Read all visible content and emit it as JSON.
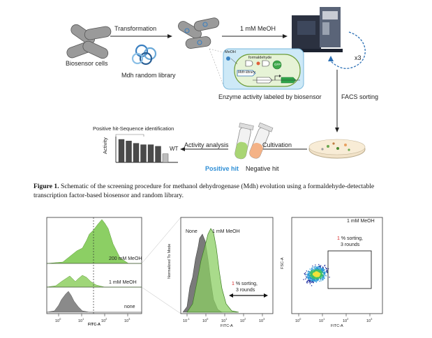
{
  "schematic": {
    "biosensor_cells": "Biosensor cells",
    "transformation": "Transformation",
    "mdh_library": "Mdh random library",
    "meoh_condition": "1 mM MeOH",
    "inset_meoh": "MeOH",
    "inset_formaldehyde": "formaldehyde",
    "inset_mdh": "Mdh library",
    "inset_gfp": "GFP",
    "enzyme_label": "Enzyme activity labeled by biosensor",
    "repeat": "x3",
    "facs": "FACS sorting",
    "cultivation": "Cultivation",
    "activity_analysis": "Activity analysis",
    "positive_hit_seq": "Positive hit-Sequence identification",
    "activity_axis": "Activity",
    "wt": "WT",
    "positive_hit": "Positive hit",
    "negative_hit": "Negative hit",
    "colors": {
      "positive": "#2f8fd6",
      "green": "#8cc75a",
      "dark_green": "#4c8a2f",
      "orange": "#f2a36b"
    }
  },
  "caption": {
    "label": "Figure 1.",
    "text": "Schematic of the screening procedure for methanol dehydrogenase (Mdh) evolution using a formaldehyde-detectable transcription factor-based biosensor and random library."
  },
  "panels": {
    "left": {
      "xlabel": "FITC-A",
      "ticks": [
        "10",
        "10",
        "10",
        "10"
      ],
      "tick_exp": [
        "0",
        "1",
        "2",
        "3"
      ],
      "labels": [
        "200 mM MeOH",
        "1 mM MeOH",
        "none"
      ]
    },
    "middle": {
      "ylabel": "Normalized To Mode",
      "xlabel": "FITC-A",
      "legend_none": "None",
      "legend_meoh": "1 mM MeOH",
      "sort_pct": "1",
      "sort_text": "% sorting,",
      "sort_rounds": "3 rounds",
      "ticks": [
        "10",
        "10",
        "10",
        "10",
        "10"
      ],
      "tick_exp": [
        "-1",
        "0",
        "1",
        "2",
        "3"
      ]
    },
    "right": {
      "title": "1 mM MeOH",
      "ylabel": "FSC-A",
      "xlabel": "FITC-A",
      "sort_pct": "1",
      "sort_text": "% sorting,",
      "sort_rounds": "3 rounds",
      "ticks": [
        "10",
        "10",
        "10",
        "10"
      ],
      "tick_exp": [
        "0",
        "1",
        "2",
        "3"
      ]
    }
  },
  "chart_data": {
    "type": "bar",
    "categories": [
      "",
      "",
      "",
      "",
      "",
      "",
      ""
    ],
    "values": [
      1.0,
      0.93,
      0.83,
      0.77,
      0.77,
      0.7,
      0.37
    ],
    "ylabel": "Activity",
    "note_last": "WT"
  }
}
